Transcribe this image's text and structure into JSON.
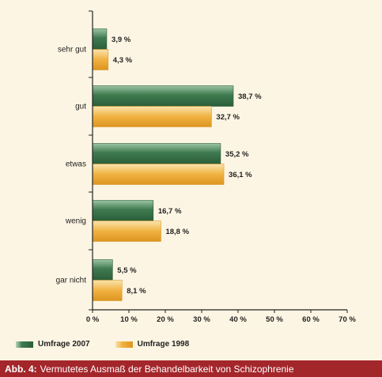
{
  "chart_data": {
    "type": "bar",
    "orientation": "horizontal",
    "categories": [
      "sehr gut",
      "gut",
      "etwas",
      "wenig",
      "gar nicht"
    ],
    "series": [
      {
        "name": "Umfrage 2007",
        "values": [
          3.9,
          38.7,
          35.2,
          16.7,
          5.5
        ],
        "color": "#3f7a4f",
        "value_labels": [
          "3,9 %",
          "38,7 %",
          "35,2 %",
          "16,7 %",
          "5,5 %"
        ]
      },
      {
        "name": "Umfrage 1998",
        "values": [
          4.3,
          32.7,
          36.1,
          18.8,
          8.1
        ],
        "color": "#f0b241",
        "value_labels": [
          "4,3 %",
          "32,7 %",
          "36,1 %",
          "18,8 %",
          "8,1 %"
        ]
      }
    ],
    "xlim": [
      0,
      70
    ],
    "x_ticks": [
      0,
      10,
      20,
      30,
      40,
      50,
      60,
      70
    ],
    "x_tick_labels": [
      "0 %",
      "10 %",
      "20 %",
      "30 %",
      "40 %",
      "50 %",
      "60 %",
      "70 %"
    ],
    "legend_position": "bottom-left",
    "grid": false
  },
  "legend": {
    "item_2007": "Umfrage 2007",
    "item_1998": "Umfrage 1998"
  },
  "caption": {
    "prefix": "Abb. 4:",
    "text": "Vermutetes Ausmaß der Behandelbarkeit von Schizophrenie"
  }
}
